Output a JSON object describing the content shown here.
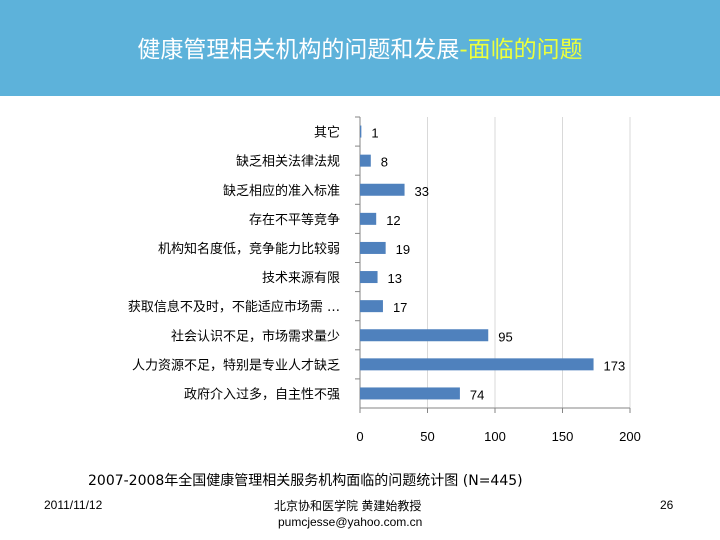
{
  "header": {
    "title_main": "健康管理相关机构的问题和发展",
    "title_sep": "-",
    "title_highlight": "面临的问题"
  },
  "chart_data": {
    "type": "bar",
    "orientation": "horizontal",
    "categories": [
      "其它",
      "缺乏相关法律法规",
      "缺乏相应的准入标准",
      "存在不平等竞争",
      "机构知名度低，竞争能力比较弱",
      "技术来源有限",
      "获取信息不及时，不能适应市场需 …",
      "社会认识不足，市场需求量少",
      "人力资源不足，特别是专业人才缺乏",
      "政府介入过多，自主性不强"
    ],
    "values": [
      1,
      8,
      33,
      12,
      19,
      13,
      17,
      95,
      173,
      74
    ],
    "xlim": [
      0,
      200
    ],
    "xticks": [
      0,
      50,
      100,
      150,
      200
    ],
    "grid": true,
    "bar_color": "#4f81bd",
    "title": "2007-2008年全国健康管理相关服务机构面临的问题统计图 (N=445)",
    "xlabel": "",
    "ylabel": ""
  },
  "footer": {
    "date": "2011/11/12",
    "author": "北京协和医学院 黄建始教授",
    "email": "pumcjesse@yahoo.com.cn",
    "page": "26"
  }
}
